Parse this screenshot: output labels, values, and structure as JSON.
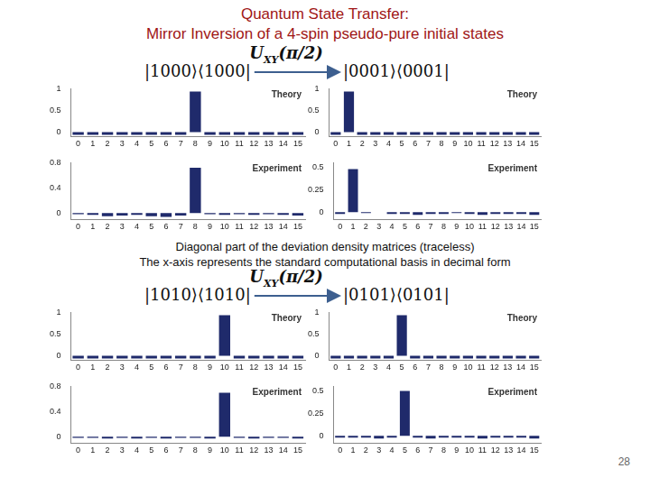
{
  "title": [
    "Quantum State Transfer:",
    "Mirror Inversion of a 4-spin pseudo-pure initial states"
  ],
  "caption": [
    "Diagonal part of the deviation density matrices (traceless)",
    "The x-axis represents the standard computational basis in decimal form"
  ],
  "page_number": 28,
  "transfers": [
    {
      "from": "|1000⟩⟨1000|",
      "to": "|0001⟩⟨0001|",
      "operator": {
        "symbol": "U",
        "subscript": "XY",
        "argument": "(π/2)"
      }
    },
    {
      "from": "|1010⟩⟨1010|",
      "to": "|0101⟩⟨0101|",
      "operator": {
        "symbol": "U",
        "subscript": "XY",
        "argument": "(π/2)"
      }
    }
  ],
  "chart_data": [
    {
      "type": "bar",
      "title": "Theory",
      "categories": [
        0,
        1,
        2,
        3,
        4,
        5,
        6,
        7,
        8,
        9,
        10,
        11,
        12,
        13,
        14,
        15
      ],
      "values": [
        -0.0625,
        -0.0625,
        -0.0625,
        -0.0625,
        -0.0625,
        -0.0625,
        -0.0625,
        -0.0625,
        0.9375,
        -0.0625,
        -0.0625,
        -0.0625,
        -0.0625,
        -0.0625,
        -0.0625,
        -0.0625
      ],
      "color": "#1f2a6b",
      "ylim": [
        -0.1,
        1
      ],
      "yticks": [
        0,
        0.5,
        1
      ],
      "grid": false
    },
    {
      "type": "bar",
      "title": "Experiment",
      "categories": [
        0,
        1,
        2,
        3,
        4,
        5,
        6,
        7,
        8,
        9,
        10,
        11,
        12,
        13,
        14,
        15
      ],
      "values": [
        -0.02,
        -0.03,
        -0.05,
        -0.04,
        -0.03,
        -0.05,
        -0.06,
        -0.04,
        0.72,
        -0.02,
        -0.03,
        -0.02,
        -0.03,
        -0.02,
        -0.03,
        -0.04
      ],
      "color": "#1f2a6b",
      "ylim": [
        -0.1,
        0.8
      ],
      "yticks": [
        0,
        0.4,
        0.8
      ],
      "grid": false
    },
    {
      "type": "bar",
      "title": "Theory",
      "categories": [
        0,
        1,
        2,
        3,
        4,
        5,
        6,
        7,
        8,
        9,
        10,
        11,
        12,
        13,
        14,
        15
      ],
      "values": [
        -0.0625,
        0.9375,
        -0.0625,
        -0.0625,
        -0.0625,
        -0.0625,
        -0.0625,
        -0.0625,
        -0.0625,
        -0.0625,
        -0.0625,
        -0.0625,
        -0.0625,
        -0.0625,
        -0.0625,
        -0.0625
      ],
      "color": "#1f2a6b",
      "ylim": [
        -0.1,
        1
      ],
      "yticks": [
        0,
        0.5,
        1
      ],
      "grid": false
    },
    {
      "type": "bar",
      "title": "Experiment",
      "categories": [
        0,
        1,
        2,
        3,
        4,
        5,
        6,
        7,
        8,
        9,
        10,
        11,
        12,
        13,
        14,
        15
      ],
      "values": [
        -0.02,
        0.48,
        -0.01,
        0,
        -0.02,
        -0.02,
        -0.03,
        -0.02,
        -0.02,
        -0.01,
        -0.02,
        -0.03,
        -0.02,
        -0.02,
        -0.02,
        -0.03
      ],
      "color": "#1f2a6b",
      "ylim": [
        -0.08,
        0.55
      ],
      "yticks": [
        0,
        0.25,
        0.5
      ],
      "grid": false
    },
    {
      "type": "bar",
      "title": "Theory",
      "categories": [
        0,
        1,
        2,
        3,
        4,
        5,
        6,
        7,
        8,
        9,
        10,
        11,
        12,
        13,
        14,
        15
      ],
      "values": [
        -0.0625,
        -0.0625,
        -0.0625,
        -0.0625,
        -0.0625,
        -0.0625,
        -0.0625,
        -0.0625,
        -0.0625,
        -0.0625,
        0.9375,
        -0.0625,
        -0.0625,
        -0.0625,
        -0.0625,
        -0.0625
      ],
      "color": "#1f2a6b",
      "ylim": [
        -0.1,
        1
      ],
      "yticks": [
        0,
        0.5,
        1
      ],
      "grid": false
    },
    {
      "type": "bar",
      "title": "Experiment",
      "categories": [
        0,
        1,
        2,
        3,
        4,
        5,
        6,
        7,
        8,
        9,
        10,
        11,
        12,
        13,
        14,
        15
      ],
      "values": [
        -0.02,
        -0.02,
        -0.03,
        -0.02,
        -0.03,
        -0.02,
        -0.03,
        -0.02,
        -0.02,
        -0.03,
        0.7,
        -0.02,
        -0.03,
        -0.02,
        -0.02,
        -0.03
      ],
      "color": "#1f2a6b",
      "ylim": [
        -0.1,
        0.8
      ],
      "yticks": [
        0,
        0.4,
        0.8
      ],
      "grid": false
    },
    {
      "type": "bar",
      "title": "Theory",
      "categories": [
        0,
        1,
        2,
        3,
        4,
        5,
        6,
        7,
        8,
        9,
        10,
        11,
        12,
        13,
        14,
        15
      ],
      "values": [
        -0.0625,
        -0.0625,
        -0.0625,
        -0.0625,
        -0.0625,
        0.9375,
        -0.0625,
        -0.0625,
        -0.0625,
        -0.0625,
        -0.0625,
        -0.0625,
        -0.0625,
        -0.0625,
        -0.0625,
        -0.0625
      ],
      "color": "#1f2a6b",
      "ylim": [
        -0.1,
        1
      ],
      "yticks": [
        0,
        0.5,
        1
      ],
      "grid": false
    },
    {
      "type": "bar",
      "title": "Experiment",
      "categories": [
        0,
        1,
        2,
        3,
        4,
        5,
        6,
        7,
        8,
        9,
        10,
        11,
        12,
        13,
        14,
        15
      ],
      "values": [
        -0.02,
        -0.02,
        -0.02,
        -0.03,
        -0.02,
        0.5,
        -0.02,
        -0.03,
        -0.02,
        -0.02,
        -0.02,
        -0.03,
        -0.02,
        -0.02,
        -0.02,
        -0.03
      ],
      "color": "#1f2a6b",
      "ylim": [
        -0.08,
        0.55
      ],
      "yticks": [
        0,
        0.25,
        0.5
      ],
      "grid": false
    }
  ]
}
